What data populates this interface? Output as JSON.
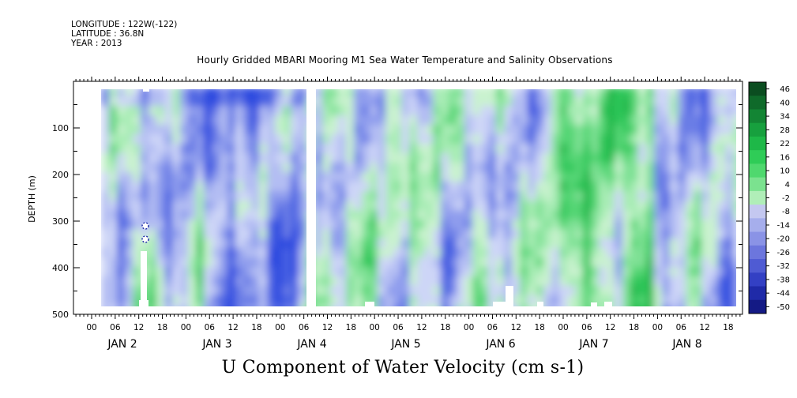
{
  "meta": {
    "longitude": "LONGITUDE : 122W(-122)",
    "latitude": "LATITUDE : 36.8N",
    "year": "YEAR : 2013"
  },
  "chart_data": {
    "type": "heatmap",
    "title": "Hourly Gridded MBARI Mooring M1 Sea Water Temperature and Salinity Observations",
    "xlabel": "U Component of Water Velocity (cm s-1)",
    "ylabel": "DEPTH (m)",
    "ylim": [
      500,
      0
    ],
    "y_ticks": [
      100,
      200,
      300,
      400,
      500
    ],
    "x_hour_labels": [
      "00",
      "06",
      "12",
      "18",
      "00",
      "06",
      "12",
      "18",
      "00",
      "06",
      "12",
      "18",
      "00",
      "06",
      "12",
      "18",
      "00",
      "06",
      "12",
      "18",
      "00",
      "06",
      "12",
      "18",
      "00",
      "06",
      "12",
      "18"
    ],
    "x_day_labels": [
      "JAN 2",
      "JAN 3",
      "JAN 4",
      "JAN 5",
      "JAN 6",
      "JAN 7",
      "JAN 8"
    ],
    "colorbar": {
      "levels": [
        46,
        40,
        34,
        28,
        22,
        16,
        10,
        4,
        -2,
        -8,
        -14,
        -20,
        -26,
        -32,
        -38,
        -44,
        -50
      ],
      "colors": [
        "#0b4d20",
        "#0f6a2a",
        "#138534",
        "#17a03e",
        "#1eb848",
        "#2fcc57",
        "#4fd86e",
        "#7be28f",
        "#b0eeb8",
        "#c4c8f0",
        "#a6aeec",
        "#8a93e6",
        "#6c76dd",
        "#4f5bd3",
        "#3340c4",
        "#1f2aa8",
        "#141a85"
      ]
    }
  }
}
